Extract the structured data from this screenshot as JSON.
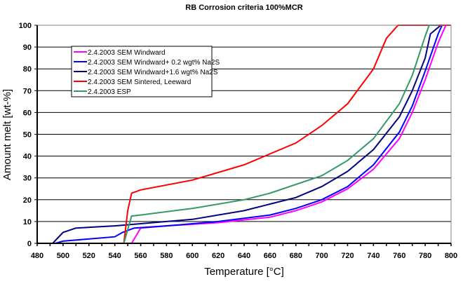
{
  "chart_data": {
    "type": "line",
    "title": "RB Corrosion criteria 100%MCR",
    "xlabel": "Temperature [°C]",
    "ylabel": "Amount melt [wt-%]",
    "xlim": [
      480,
      800
    ],
    "ylim": [
      0,
      100
    ],
    "xticks": [
      480,
      500,
      520,
      540,
      560,
      580,
      600,
      620,
      640,
      660,
      680,
      700,
      720,
      740,
      760,
      780,
      800
    ],
    "yticks": [
      0,
      10,
      20,
      30,
      40,
      50,
      60,
      70,
      80,
      90,
      100
    ],
    "grid": "horizontal",
    "legend_position": "top-left",
    "series": [
      {
        "name": "2.4.2003 SEM Windward",
        "color": "#ff00ff",
        "x": [
          553,
          560,
          580,
          620,
          660,
          680,
          700,
          720,
          740,
          760,
          770,
          780,
          790,
          796,
          800
        ],
        "y": [
          0,
          7,
          8,
          9.5,
          12,
          15,
          19,
          25,
          34,
          48,
          60,
          75,
          92,
          100,
          100
        ]
      },
      {
        "name": "2.4.2003 SEM Windward+ 0.2 wgt% Na2S",
        "color": "#0000ff",
        "x": [
          494,
          500,
          520,
          540,
          546,
          555,
          580,
          620,
          660,
          680,
          700,
          720,
          740,
          760,
          770,
          780,
          790,
          793
        ],
        "y": [
          0,
          1,
          2,
          3,
          5,
          7,
          8,
          10,
          13,
          16,
          20,
          26,
          36,
          51,
          63,
          79,
          96,
          100
        ]
      },
      {
        "name": "2.4.2003 SEM Windward+1.6 wgt% Na2S",
        "color": "#000080",
        "x": [
          492,
          500,
          510,
          540,
          560,
          600,
          640,
          660,
          680,
          700,
          720,
          740,
          760,
          770,
          780,
          784,
          790,
          792
        ],
        "y": [
          0,
          5,
          7,
          8,
          9,
          11,
          15,
          18,
          21,
          26,
          33,
          43,
          58,
          70,
          85,
          96,
          99,
          100
        ]
      },
      {
        "name": "2.4.2003 SEM Sintered, Leeward",
        "color": "#ff0000",
        "x": [
          547,
          550,
          553,
          560,
          600,
          640,
          680,
          700,
          720,
          740,
          750,
          759,
          800
        ],
        "y": [
          0,
          15,
          23,
          24.5,
          29,
          36,
          46,
          54,
          64,
          80,
          94,
          100,
          100
        ]
      },
      {
        "name": "2.4.2003 ESP",
        "color": "#339966",
        "x": [
          547,
          553,
          560,
          600,
          640,
          660,
          680,
          700,
          720,
          740,
          760,
          770,
          780,
          783,
          790
        ],
        "y": [
          0,
          12.5,
          13,
          16,
          20,
          23,
          27,
          31,
          38,
          48,
          64,
          77,
          95,
          100,
          100
        ]
      }
    ]
  }
}
